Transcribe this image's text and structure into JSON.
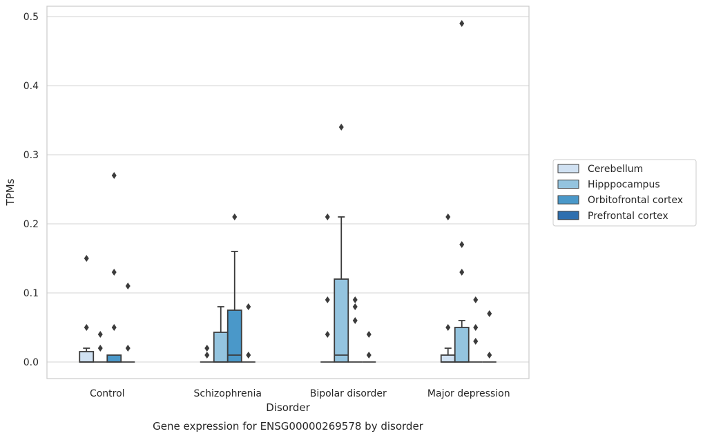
{
  "chart_data": {
    "type": "box",
    "title": "",
    "caption": "Gene expression for ENSG00000269578 by disorder",
    "xlabel": "Disorder",
    "ylabel": "TPMs",
    "ylim": [
      -0.024,
      0.515
    ],
    "yticks": [
      0.0,
      0.1,
      0.2,
      0.3,
      0.4,
      0.5
    ],
    "ytick_labels": [
      "0.0",
      "0.1",
      "0.2",
      "0.3",
      "0.4",
      "0.5"
    ],
    "categories": [
      "Control",
      "Schizophrenia",
      "Bipolar disorder",
      "Major depression"
    ],
    "grid": true,
    "legend_position": "right",
    "series": [
      {
        "name": "Cerebellum",
        "color": "#d0e1f2",
        "boxes": [
          {
            "q1": 0,
            "median": 0,
            "q3": 0.015,
            "whisker_low": 0,
            "whisker_high": 0.02,
            "outliers": [
              0.05,
              0.15
            ]
          },
          {
            "q1": 0,
            "median": 0,
            "q3": 0,
            "whisker_low": 0,
            "whisker_high": 0,
            "outliers": [
              0.01,
              0.02
            ]
          },
          {
            "q1": 0,
            "median": 0,
            "q3": 0,
            "whisker_low": 0,
            "whisker_high": 0,
            "outliers": [
              0.04,
              0.09,
              0.21
            ]
          },
          {
            "q1": 0,
            "median": 0,
            "q3": 0.01,
            "whisker_low": 0,
            "whisker_high": 0.02,
            "outliers": [
              0.05,
              0.21
            ]
          }
        ]
      },
      {
        "name": "Hipppocampus",
        "color": "#94c4df",
        "boxes": [
          {
            "q1": 0,
            "median": 0,
            "q3": 0,
            "whisker_low": 0,
            "whisker_high": 0,
            "outliers": [
              0.02,
              0.04
            ]
          },
          {
            "q1": 0,
            "median": 0,
            "q3": 0.043,
            "whisker_low": 0,
            "whisker_high": 0.08,
            "outliers": []
          },
          {
            "q1": 0,
            "median": 0.01,
            "q3": 0.12,
            "whisker_low": 0,
            "whisker_high": 0.21,
            "outliers": [
              0.34
            ]
          },
          {
            "q1": 0,
            "median": 0,
            "q3": 0.05,
            "whisker_low": 0,
            "whisker_high": 0.06,
            "outliers": [
              0.13,
              0.17,
              0.49
            ]
          }
        ]
      },
      {
        "name": "Orbitofrontal cortex",
        "color": "#4a98c9",
        "boxes": [
          {
            "q1": 0,
            "median": 0,
            "q3": 0.01,
            "whisker_low": 0,
            "whisker_high": 0.01,
            "outliers": [
              0.05,
              0.13,
              0.27
            ]
          },
          {
            "q1": 0,
            "median": 0.01,
            "q3": 0.075,
            "whisker_low": 0,
            "whisker_high": 0.16,
            "outliers": [
              0.21
            ]
          },
          {
            "q1": 0,
            "median": 0,
            "q3": 0,
            "whisker_low": 0,
            "whisker_high": 0,
            "outliers": [
              0.06,
              0.08,
              0.09
            ]
          },
          {
            "q1": 0,
            "median": 0,
            "q3": 0,
            "whisker_low": 0,
            "whisker_high": 0,
            "outliers": [
              0.03,
              0.05,
              0.09
            ]
          }
        ]
      },
      {
        "name": "Prefrontal cortex",
        "color": "#2e6faf",
        "boxes": [
          {
            "q1": 0,
            "median": 0,
            "q3": 0,
            "whisker_low": 0,
            "whisker_high": 0,
            "outliers": [
              0.02,
              0.11
            ]
          },
          {
            "q1": 0,
            "median": 0,
            "q3": 0,
            "whisker_low": 0,
            "whisker_high": 0,
            "outliers": [
              0.01,
              0.08
            ]
          },
          {
            "q1": 0,
            "median": 0,
            "q3": 0,
            "whisker_low": 0,
            "whisker_high": 0,
            "outliers": [
              0.01,
              0.04
            ]
          },
          {
            "q1": 0,
            "median": 0,
            "q3": 0,
            "whisker_low": 0,
            "whisker_high": 0,
            "outliers": [
              0.01,
              0.07
            ]
          }
        ]
      }
    ]
  }
}
